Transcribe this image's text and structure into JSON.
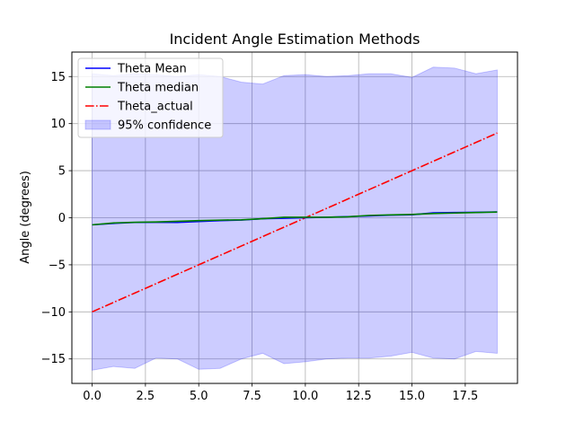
{
  "chart_data": {
    "type": "line",
    "title": "Incident Angle Estimation Methods",
    "xlabel": "",
    "ylabel": "Angle (degrees)",
    "xlim": [
      -0.95,
      19.95
    ],
    "ylim": [
      -17.6,
      17.6
    ],
    "xticks": [
      0.0,
      2.5,
      5.0,
      7.5,
      10.0,
      12.5,
      15.0,
      17.5
    ],
    "xtick_labels": [
      "0.0",
      "2.5",
      "5.0",
      "7.5",
      "10.0",
      "12.5",
      "15.0",
      "17.5"
    ],
    "yticks": [
      -15,
      -10,
      -5,
      0,
      5,
      10,
      15
    ],
    "ytick_labels": [
      "−15",
      "−10",
      "−5",
      "0",
      "5",
      "10",
      "15"
    ],
    "grid": true,
    "legend_position": "upper-left",
    "x": [
      0,
      1,
      2,
      3,
      4,
      5,
      6,
      7,
      8,
      9,
      10,
      11,
      12,
      13,
      14,
      15,
      16,
      17,
      18,
      19
    ],
    "series": [
      {
        "name": "Theta Mean",
        "color": "#0000ff",
        "style": "solid",
        "values": [
          -0.75,
          -0.6,
          -0.5,
          -0.48,
          -0.5,
          -0.4,
          -0.3,
          -0.25,
          -0.1,
          -0.05,
          0.0,
          0.05,
          0.12,
          0.2,
          0.28,
          0.32,
          0.52,
          0.55,
          0.58,
          0.62
        ]
      },
      {
        "name": "Theta median",
        "color": "#008000",
        "style": "solid",
        "values": [
          -0.75,
          -0.55,
          -0.48,
          -0.45,
          -0.38,
          -0.3,
          -0.25,
          -0.22,
          -0.1,
          0.05,
          0.05,
          0.05,
          0.1,
          0.25,
          0.3,
          0.35,
          0.45,
          0.5,
          0.55,
          0.6
        ]
      },
      {
        "name": "Theta_actual",
        "color": "#ff0000",
        "style": "dashdot",
        "values": [
          -10,
          -9,
          -8,
          -7,
          -6,
          -5,
          -4,
          -3,
          -2,
          -1,
          0,
          1,
          2,
          3,
          4,
          5,
          6,
          7,
          8,
          9
        ]
      }
    ],
    "confidence_band": {
      "name": "95% confidence",
      "color": "#0000ff",
      "opacity": 0.2,
      "upper": [
        15.3,
        15.1,
        15.3,
        15.2,
        15.0,
        15.2,
        15.0,
        14.4,
        14.2,
        15.1,
        15.2,
        15.0,
        15.1,
        15.3,
        15.3,
        14.9,
        16.0,
        15.9,
        15.3,
        15.7
      ],
      "lower": [
        -16.2,
        -15.8,
        -16.0,
        -14.9,
        -15.0,
        -16.1,
        -16.0,
        -15.0,
        -14.4,
        -15.5,
        -15.3,
        -15.0,
        -14.9,
        -14.9,
        -14.7,
        -14.3,
        -14.9,
        -15.0,
        -14.2,
        -14.4
      ]
    }
  }
}
